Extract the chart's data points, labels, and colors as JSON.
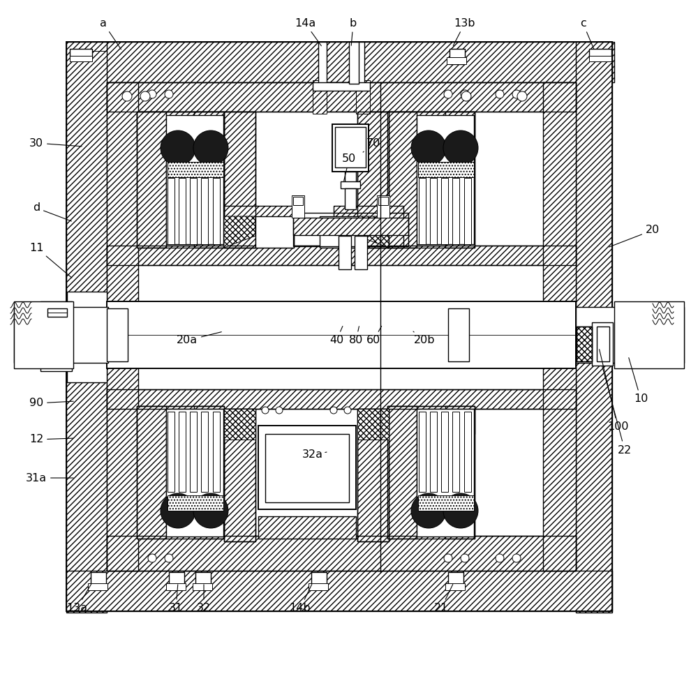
{
  "bg_color": "#ffffff",
  "lc": "#000000",
  "annotations": [
    [
      "a",
      148,
      33,
      175,
      73
    ],
    [
      "14a",
      437,
      33,
      462,
      68
    ],
    [
      "b",
      506,
      33,
      503,
      68
    ],
    [
      "13b",
      666,
      33,
      648,
      68
    ],
    [
      "c",
      835,
      33,
      852,
      73
    ],
    [
      "30",
      52,
      205,
      120,
      210
    ],
    [
      "d",
      52,
      298,
      105,
      318
    ],
    [
      "11",
      52,
      355,
      105,
      400
    ],
    [
      "20",
      935,
      330,
      870,
      355
    ],
    [
      "20a",
      268,
      488,
      320,
      475
    ],
    [
      "40",
      482,
      488,
      492,
      465
    ],
    [
      "80",
      510,
      488,
      515,
      465
    ],
    [
      "60",
      535,
      488,
      548,
      465
    ],
    [
      "20b",
      608,
      488,
      592,
      475
    ],
    [
      "70",
      535,
      205,
      518,
      220
    ],
    [
      "50",
      500,
      228,
      492,
      262
    ],
    [
      "90",
      52,
      578,
      108,
      575
    ],
    [
      "12",
      52,
      630,
      108,
      628
    ],
    [
      "31a",
      52,
      685,
      108,
      685
    ],
    [
      "100",
      885,
      612,
      858,
      498
    ],
    [
      "22",
      895,
      645,
      862,
      522
    ],
    [
      "10",
      918,
      572,
      900,
      510
    ],
    [
      "32a",
      448,
      652,
      468,
      648
    ],
    [
      "13a",
      110,
      872,
      132,
      835
    ],
    [
      "31",
      252,
      872,
      255,
      835
    ],
    [
      "32",
      292,
      872,
      292,
      835
    ],
    [
      "14b",
      430,
      872,
      448,
      835
    ],
    [
      "21",
      632,
      872,
      650,
      835
    ]
  ]
}
